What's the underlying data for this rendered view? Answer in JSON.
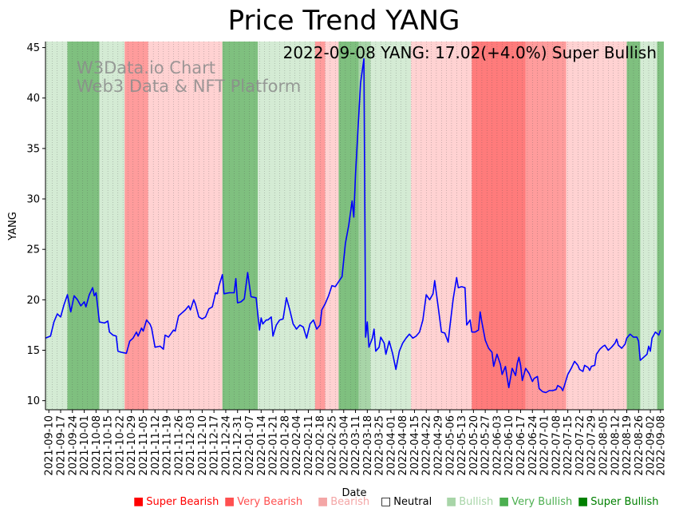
{
  "chart_data": {
    "type": "line",
    "title": "Price Trend YANG",
    "annotation": "2022-09-08 YANG: 17.02(+4.0%) Super Bullish",
    "watermark": [
      "W3Data.io Chart",
      "Web3 Data & NFT Platform"
    ],
    "xlabel": "Date",
    "ylabel": "YANG",
    "ylim": [
      9.1,
      45.6
    ],
    "yticks": [
      10,
      15,
      20,
      25,
      30,
      35,
      40,
      45
    ],
    "xlim": [
      "2021-09-08",
      "2022-09-10"
    ],
    "xticks": [
      "2021-09-10",
      "2021-09-17",
      "2021-09-24",
      "2021-10-01",
      "2021-10-08",
      "2021-10-15",
      "2021-10-22",
      "2021-10-29",
      "2021-11-05",
      "2021-11-12",
      "2021-11-19",
      "2021-11-26",
      "2021-12-03",
      "2021-12-10",
      "2021-12-17",
      "2021-12-24",
      "2021-12-31",
      "2022-01-07",
      "2022-01-14",
      "2022-01-21",
      "2022-01-28",
      "2022-02-04",
      "2022-02-11",
      "2022-02-18",
      "2022-02-25",
      "2022-03-04",
      "2022-03-11",
      "2022-03-18",
      "2022-03-25",
      "2022-04-01",
      "2022-04-08",
      "2022-04-15",
      "2022-04-22",
      "2022-04-29",
      "2022-05-06",
      "2022-05-13",
      "2022-05-20",
      "2022-05-27",
      "2022-06-03",
      "2022-06-10",
      "2022-06-17",
      "2022-06-24",
      "2022-07-01",
      "2022-07-08",
      "2022-07-15",
      "2022-07-22",
      "2022-07-29",
      "2022-08-05",
      "2022-08-12",
      "2022-08-19",
      "2022-08-26",
      "2022-09-02",
      "2022-09-08"
    ],
    "grid": "vertical dotted",
    "line_color": "#0000ff",
    "legend": [
      {
        "label": "Super Bearish",
        "color": "#ff0000"
      },
      {
        "label": "Very Bearish",
        "color": "#ff5050"
      },
      {
        "label": "Bearish",
        "color": "#f4a6a6"
      },
      {
        "label": "Neutral",
        "color": "#000000"
      },
      {
        "label": "Bullish",
        "color": "#a8d5a8"
      },
      {
        "label": "Very Bullish",
        "color": "#4caf50"
      },
      {
        "label": "Super Bullish",
        "color": "#008000"
      }
    ],
    "band_colors": {
      "super_bearish": "#ff7b7b",
      "very_bearish": "#ff9c9c",
      "bearish": "#ffd2d2",
      "bullish": "#d4ebd4",
      "very_bullish": "#a8d5a8",
      "super_bullish": "#7fc07f"
    },
    "regimes": [
      {
        "start": "2021-09-08",
        "end": "2021-09-21",
        "state": "bullish"
      },
      {
        "start": "2021-09-21",
        "end": "2021-10-10",
        "state": "super_bullish"
      },
      {
        "start": "2021-10-10",
        "end": "2021-10-25",
        "state": "bullish"
      },
      {
        "start": "2021-10-25",
        "end": "2021-11-08",
        "state": "very_bearish"
      },
      {
        "start": "2021-11-08",
        "end": "2021-12-22",
        "state": "bearish"
      },
      {
        "start": "2021-12-22",
        "end": "2022-01-12",
        "state": "super_bullish"
      },
      {
        "start": "2022-01-12",
        "end": "2022-02-15",
        "state": "bullish"
      },
      {
        "start": "2022-02-15",
        "end": "2022-02-21",
        "state": "very_bearish"
      },
      {
        "start": "2022-02-21",
        "end": "2022-03-01",
        "state": "bearish"
      },
      {
        "start": "2022-03-01",
        "end": "2022-03-13",
        "state": "super_bullish"
      },
      {
        "start": "2022-03-13",
        "end": "2022-03-20",
        "state": "very_bullish"
      },
      {
        "start": "2022-03-20",
        "end": "2022-04-13",
        "state": "bullish"
      },
      {
        "start": "2022-04-13",
        "end": "2022-05-19",
        "state": "bearish"
      },
      {
        "start": "2022-05-19",
        "end": "2022-06-20",
        "state": "super_bearish"
      },
      {
        "start": "2022-06-20",
        "end": "2022-07-14",
        "state": "very_bearish"
      },
      {
        "start": "2022-07-14",
        "end": "2022-08-19",
        "state": "bearish"
      },
      {
        "start": "2022-08-19",
        "end": "2022-08-27",
        "state": "super_bullish"
      },
      {
        "start": "2022-08-27",
        "end": "2022-09-06",
        "state": "bullish"
      },
      {
        "start": "2022-09-06",
        "end": "2022-09-10",
        "state": "super_bullish"
      }
    ],
    "series": [
      {
        "points": [
          [
            "2021-09-08",
            16.2
          ],
          [
            "2021-09-11",
            16.4
          ],
          [
            "2021-09-13",
            17.8
          ],
          [
            "2021-09-15",
            18.6
          ],
          [
            "2021-09-17",
            18.3
          ],
          [
            "2021-09-19",
            19.5
          ],
          [
            "2021-09-21",
            20.5
          ],
          [
            "2021-09-23",
            18.8
          ],
          [
            "2021-09-25",
            20.4
          ],
          [
            "2021-09-27",
            20.0
          ],
          [
            "2021-09-29",
            19.4
          ],
          [
            "2021-10-01",
            19.8
          ],
          [
            "2021-10-02",
            19.3
          ],
          [
            "2021-10-04",
            20.5
          ],
          [
            "2021-10-06",
            21.2
          ],
          [
            "2021-10-07",
            20.4
          ],
          [
            "2021-10-08",
            20.7
          ],
          [
            "2021-10-10",
            17.8
          ],
          [
            "2021-10-13",
            17.7
          ],
          [
            "2021-10-15",
            17.9
          ],
          [
            "2021-10-16",
            16.8
          ],
          [
            "2021-10-18",
            16.5
          ],
          [
            "2021-10-20",
            16.4
          ],
          [
            "2021-10-21",
            14.9
          ],
          [
            "2021-10-23",
            14.8
          ],
          [
            "2021-10-26",
            14.7
          ],
          [
            "2021-10-28",
            15.9
          ],
          [
            "2021-10-30",
            16.2
          ],
          [
            "2021-11-01",
            16.8
          ],
          [
            "2021-11-02",
            16.4
          ],
          [
            "2021-11-04",
            17.2
          ],
          [
            "2021-11-05",
            16.9
          ],
          [
            "2021-11-07",
            18.0
          ],
          [
            "2021-11-09",
            17.6
          ],
          [
            "2021-11-10",
            17.2
          ],
          [
            "2021-11-12",
            15.3
          ],
          [
            "2021-11-15",
            15.4
          ],
          [
            "2021-11-17",
            15.1
          ],
          [
            "2021-11-18",
            16.5
          ],
          [
            "2021-11-20",
            16.3
          ],
          [
            "2021-11-23",
            17.0
          ],
          [
            "2021-11-24",
            16.9
          ],
          [
            "2021-11-26",
            18.4
          ],
          [
            "2021-11-28",
            18.7
          ],
          [
            "2021-11-30",
            19.0
          ],
          [
            "2021-12-02",
            19.4
          ],
          [
            "2021-12-03",
            19.0
          ],
          [
            "2021-12-05",
            20.0
          ],
          [
            "2021-12-06",
            19.6
          ],
          [
            "2021-12-08",
            18.3
          ],
          [
            "2021-12-10",
            18.1
          ],
          [
            "2021-12-12",
            18.3
          ],
          [
            "2021-12-14",
            19.1
          ],
          [
            "2021-12-16",
            19.3
          ],
          [
            "2021-12-18",
            20.7
          ],
          [
            "2021-12-19",
            20.6
          ],
          [
            "2021-12-20",
            21.4
          ],
          [
            "2021-12-22",
            22.5
          ],
          [
            "2021-12-23",
            20.6
          ],
          [
            "2021-12-26",
            20.7
          ],
          [
            "2021-12-29",
            20.7
          ],
          [
            "2021-12-30",
            22.1
          ],
          [
            "2021-12-31",
            19.7
          ],
          [
            "2022-01-02",
            19.8
          ],
          [
            "2022-01-04",
            20.1
          ],
          [
            "2022-01-06",
            22.7
          ],
          [
            "2022-01-08",
            20.3
          ],
          [
            "2022-01-11",
            20.2
          ],
          [
            "2022-01-13",
            17.0
          ],
          [
            "2022-01-14",
            18.2
          ],
          [
            "2022-01-15",
            17.6
          ],
          [
            "2022-01-17",
            18.0
          ],
          [
            "2022-01-18",
            18.0
          ],
          [
            "2022-01-20",
            18.3
          ],
          [
            "2022-01-21",
            16.4
          ],
          [
            "2022-01-23",
            17.5
          ],
          [
            "2022-01-25",
            18.0
          ],
          [
            "2022-01-27",
            18.1
          ],
          [
            "2022-01-29",
            20.2
          ],
          [
            "2022-01-31",
            19.0
          ],
          [
            "2022-02-02",
            17.6
          ],
          [
            "2022-02-04",
            17.1
          ],
          [
            "2022-02-06",
            17.5
          ],
          [
            "2022-02-08",
            17.3
          ],
          [
            "2022-02-10",
            16.2
          ],
          [
            "2022-02-12",
            17.6
          ],
          [
            "2022-02-14",
            18.0
          ],
          [
            "2022-02-16",
            17.1
          ],
          [
            "2022-02-18",
            17.5
          ],
          [
            "2022-02-19",
            19.0
          ],
          [
            "2022-02-21",
            19.6
          ],
          [
            "2022-02-23",
            20.4
          ],
          [
            "2022-02-25",
            21.4
          ],
          [
            "2022-02-27",
            21.3
          ],
          [
            "2022-03-01",
            21.8
          ],
          [
            "2022-03-03",
            22.3
          ],
          [
            "2022-03-05",
            25.6
          ],
          [
            "2022-03-07",
            27.4
          ],
          [
            "2022-03-08",
            28.6
          ],
          [
            "2022-03-09",
            29.8
          ],
          [
            "2022-03-10",
            28.2
          ],
          [
            "2022-03-11",
            32.5
          ],
          [
            "2022-03-13",
            38.5
          ],
          [
            "2022-03-14",
            41.5
          ],
          [
            "2022-03-16",
            43.9
          ],
          [
            "2022-03-17",
            16.3
          ],
          [
            "2022-03-18",
            17.8
          ],
          [
            "2022-03-19",
            15.3
          ],
          [
            "2022-03-21",
            16.2
          ],
          [
            "2022-03-22",
            17.1
          ],
          [
            "2022-03-23",
            14.9
          ],
          [
            "2022-03-25",
            15.3
          ],
          [
            "2022-03-26",
            16.3
          ],
          [
            "2022-03-28",
            15.7
          ],
          [
            "2022-03-29",
            14.6
          ],
          [
            "2022-03-31",
            15.9
          ],
          [
            "2022-04-02",
            14.7
          ],
          [
            "2022-04-04",
            13.1
          ],
          [
            "2022-04-06",
            14.9
          ],
          [
            "2022-04-08",
            15.7
          ],
          [
            "2022-04-10",
            16.2
          ],
          [
            "2022-04-12",
            16.6
          ],
          [
            "2022-04-14",
            16.2
          ],
          [
            "2022-04-16",
            16.4
          ],
          [
            "2022-04-18",
            16.8
          ],
          [
            "2022-04-20",
            18.0
          ],
          [
            "2022-04-22",
            20.5
          ],
          [
            "2022-04-24",
            20.0
          ],
          [
            "2022-04-26",
            20.6
          ],
          [
            "2022-04-27",
            21.9
          ],
          [
            "2022-04-29",
            19.4
          ],
          [
            "2022-05-01",
            16.8
          ],
          [
            "2022-05-03",
            16.7
          ],
          [
            "2022-05-05",
            15.8
          ],
          [
            "2022-05-06",
            17.3
          ],
          [
            "2022-05-08",
            20.1
          ],
          [
            "2022-05-10",
            22.2
          ],
          [
            "2022-05-11",
            21.2
          ],
          [
            "2022-05-13",
            21.3
          ],
          [
            "2022-05-15",
            21.2
          ],
          [
            "2022-05-16",
            17.5
          ],
          [
            "2022-05-18",
            18.0
          ],
          [
            "2022-05-19",
            16.8
          ],
          [
            "2022-05-21",
            16.8
          ],
          [
            "2022-05-23",
            17.0
          ],
          [
            "2022-05-24",
            18.8
          ],
          [
            "2022-05-25",
            17.8
          ],
          [
            "2022-05-27",
            16.0
          ],
          [
            "2022-05-29",
            15.2
          ],
          [
            "2022-05-31",
            14.8
          ],
          [
            "2022-06-01",
            13.4
          ],
          [
            "2022-06-03",
            14.6
          ],
          [
            "2022-06-05",
            13.6
          ],
          [
            "2022-06-06",
            12.6
          ],
          [
            "2022-06-08",
            13.4
          ],
          [
            "2022-06-09",
            12.3
          ],
          [
            "2022-06-10",
            11.3
          ],
          [
            "2022-06-12",
            13.2
          ],
          [
            "2022-06-14",
            12.5
          ],
          [
            "2022-06-15",
            13.7
          ],
          [
            "2022-06-16",
            14.3
          ],
          [
            "2022-06-17",
            13.5
          ],
          [
            "2022-06-18",
            12.0
          ],
          [
            "2022-06-20",
            13.2
          ],
          [
            "2022-06-22",
            12.7
          ],
          [
            "2022-06-24",
            11.9
          ],
          [
            "2022-06-25",
            12.2
          ],
          [
            "2022-06-27",
            12.4
          ],
          [
            "2022-06-28",
            11.2
          ],
          [
            "2022-06-30",
            10.9
          ],
          [
            "2022-07-02",
            10.8
          ],
          [
            "2022-07-04",
            11.0
          ],
          [
            "2022-07-06",
            11.0
          ],
          [
            "2022-07-08",
            11.1
          ],
          [
            "2022-07-09",
            11.5
          ],
          [
            "2022-07-11",
            11.3
          ],
          [
            "2022-07-12",
            11.0
          ],
          [
            "2022-07-13",
            11.5
          ],
          [
            "2022-07-15",
            12.6
          ],
          [
            "2022-07-17",
            13.2
          ],
          [
            "2022-07-19",
            13.9
          ],
          [
            "2022-07-21",
            13.5
          ],
          [
            "2022-07-22",
            13.1
          ],
          [
            "2022-07-24",
            12.9
          ],
          [
            "2022-07-25",
            13.5
          ],
          [
            "2022-07-27",
            13.3
          ],
          [
            "2022-07-28",
            13.0
          ],
          [
            "2022-07-29",
            13.4
          ],
          [
            "2022-07-31",
            13.5
          ],
          [
            "2022-08-01",
            14.6
          ],
          [
            "2022-08-03",
            15.1
          ],
          [
            "2022-08-05",
            15.4
          ],
          [
            "2022-08-06",
            15.5
          ],
          [
            "2022-08-08",
            15.0
          ],
          [
            "2022-08-10",
            15.3
          ],
          [
            "2022-08-12",
            15.7
          ],
          [
            "2022-08-13",
            16.1
          ],
          [
            "2022-08-14",
            15.5
          ],
          [
            "2022-08-16",
            15.2
          ],
          [
            "2022-08-18",
            15.6
          ],
          [
            "2022-08-19",
            16.2
          ],
          [
            "2022-08-21",
            16.6
          ],
          [
            "2022-08-23",
            16.3
          ],
          [
            "2022-08-25",
            16.3
          ],
          [
            "2022-08-26",
            15.9
          ],
          [
            "2022-08-27",
            14.0
          ],
          [
            "2022-08-29",
            14.3
          ],
          [
            "2022-08-31",
            14.6
          ],
          [
            "2022-09-01",
            15.4
          ],
          [
            "2022-09-02",
            14.9
          ],
          [
            "2022-09-03",
            16.2
          ],
          [
            "2022-09-05",
            16.8
          ],
          [
            "2022-09-07",
            16.5
          ],
          [
            "2022-09-08",
            17.0
          ]
        ]
      }
    ]
  }
}
